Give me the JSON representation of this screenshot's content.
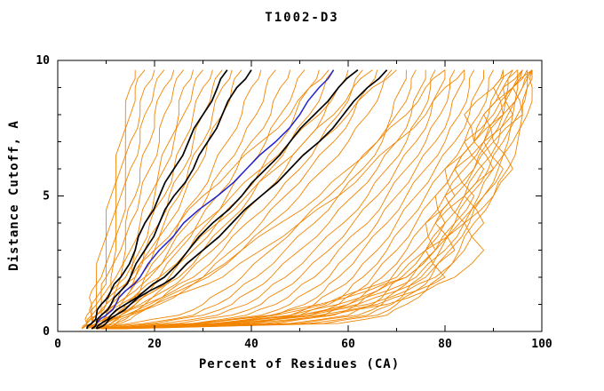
{
  "chart": {
    "title": "T1002-D3",
    "xlabel": "Percent of Residues (CA)",
    "ylabel": "Distance Cutoff, A"
  },
  "chart_data": {
    "type": "line",
    "title": "T1002-D3",
    "xlabel": "Percent of Residues (CA)",
    "ylabel": "Distance Cutoff, A",
    "xlim": [
      0,
      100
    ],
    "ylim": [
      0,
      10
    ],
    "grid": false,
    "legend": "none",
    "x_ticks": {
      "values": [
        0,
        20,
        40,
        60,
        80,
        100
      ],
      "labels": [
        "0",
        "20",
        "40",
        "60",
        "80",
        "100"
      ],
      "minor": [
        10,
        30,
        50,
        70,
        90
      ]
    },
    "y_ticks": {
      "values": [
        0,
        5,
        10
      ],
      "labels": [
        "0",
        "5",
        "10"
      ],
      "minor": [
        1,
        2,
        3,
        4,
        6,
        7,
        8,
        9
      ]
    },
    "colors": {
      "orange": "#f28500",
      "black": "#000000",
      "blue": "#2222cc"
    },
    "series_y_grid": [
      0.1,
      0.3,
      0.6,
      1,
      1.5,
      2,
      3,
      4,
      5,
      6,
      7,
      8,
      9,
      9.65
    ],
    "series": [
      {
        "c": "orange",
        "x": [
          5,
          6,
          6,
          7,
          7,
          8,
          9,
          10,
          11,
          12,
          13,
          14,
          15,
          16
        ]
      },
      {
        "c": "orange",
        "x": [
          5,
          6,
          7,
          7,
          8,
          9,
          10,
          11,
          12,
          13,
          14,
          15,
          16,
          18
        ]
      },
      {
        "c": "orange",
        "x": [
          6,
          6,
          7,
          8,
          9,
          10,
          11,
          12,
          13,
          14,
          15,
          17,
          18,
          20
        ]
      },
      {
        "c": "orange",
        "x": [
          6,
          7,
          7,
          8,
          9,
          10,
          12,
          13,
          14,
          15,
          17,
          18,
          20,
          22
        ]
      },
      {
        "c": "orange",
        "x": [
          6,
          7,
          8,
          9,
          10,
          11,
          13,
          14,
          16,
          17,
          19,
          20,
          22,
          24
        ]
      },
      {
        "c": "orange",
        "x": [
          6,
          7,
          8,
          9,
          11,
          12,
          14,
          15,
          17,
          19,
          21,
          22,
          24,
          26
        ]
      },
      {
        "c": "orange",
        "x": [
          7,
          7,
          8,
          10,
          11,
          13,
          15,
          17,
          19,
          21,
          23,
          25,
          26,
          28
        ]
      },
      {
        "c": "orange",
        "x": [
          7,
          8,
          9,
          10,
          12,
          14,
          16,
          18,
          20,
          22,
          24,
          26,
          28,
          30
        ]
      },
      {
        "c": "orange",
        "x": [
          7,
          8,
          9,
          11,
          13,
          15,
          17,
          19,
          22,
          24,
          26,
          28,
          30,
          32
        ]
      },
      {
        "c": "orange",
        "x": [
          7,
          8,
          10,
          11,
          13,
          16,
          18,
          21,
          23,
          26,
          28,
          30,
          32,
          34
        ]
      },
      {
        "c": "orange",
        "x": [
          7,
          8,
          10,
          12,
          14,
          16,
          19,
          22,
          25,
          27,
          30,
          32,
          34,
          36
        ]
      },
      {
        "c": "orange",
        "x": [
          8,
          9,
          10,
          12,
          15,
          17,
          20,
          23,
          26,
          29,
          31,
          34,
          36,
          38
        ]
      },
      {
        "c": "orange",
        "x": [
          8,
          9,
          11,
          13,
          16,
          18,
          22,
          25,
          29,
          32,
          35,
          38,
          40,
          42
        ]
      },
      {
        "c": "orange",
        "x": [
          8,
          9,
          11,
          14,
          17,
          19,
          23,
          27,
          31,
          34,
          38,
          41,
          43,
          45
        ]
      },
      {
        "c": "orange",
        "x": [
          8,
          10,
          12,
          14,
          18,
          21,
          25,
          29,
          33,
          37,
          40,
          44,
          46,
          48
        ]
      },
      {
        "c": "orange",
        "x": [
          8,
          10,
          12,
          15,
          19,
          22,
          27,
          31,
          35,
          39,
          43,
          46,
          49,
          51
        ]
      },
      {
        "c": "orange",
        "x": [
          9,
          10,
          13,
          16,
          20,
          23,
          28,
          33,
          38,
          42,
          46,
          49,
          52,
          54
        ]
      },
      {
        "c": "orange",
        "x": [
          9,
          11,
          13,
          17,
          21,
          25,
          30,
          35,
          40,
          44,
          48,
          52,
          55,
          57
        ]
      },
      {
        "c": "orange",
        "x": [
          9,
          11,
          14,
          18,
          22,
          26,
          32,
          37,
          42,
          47,
          51,
          55,
          58,
          60
        ]
      },
      {
        "c": "orange",
        "x": [
          9,
          12,
          15,
          19,
          23,
          28,
          34,
          39,
          45,
          50,
          54,
          58,
          61,
          63
        ]
      },
      {
        "c": "orange",
        "x": [
          10,
          12,
          15,
          20,
          25,
          30,
          36,
          42,
          47,
          52,
          57,
          61,
          64,
          66
        ]
      },
      {
        "c": "orange",
        "x": [
          10,
          13,
          16,
          21,
          26,
          31,
          38,
          44,
          50,
          55,
          60,
          64,
          67,
          69
        ]
      },
      {
        "c": "orange",
        "x": [
          7,
          15,
          25,
          30,
          34,
          38,
          44,
          50,
          56,
          61,
          66,
          69,
          71,
          72
        ]
      },
      {
        "c": "orange",
        "x": [
          7,
          18,
          28,
          33,
          37,
          41,
          47,
          53,
          58,
          63,
          67,
          70,
          73,
          74
        ]
      },
      {
        "c": "orange",
        "x": [
          8,
          20,
          30,
          36,
          40,
          44,
          50,
          56,
          61,
          66,
          70,
          73,
          75,
          76
        ]
      },
      {
        "c": "orange",
        "x": [
          8,
          22,
          33,
          39,
          43,
          47,
          53,
          59,
          64,
          68,
          72,
          75,
          77,
          78
        ]
      },
      {
        "c": "orange",
        "x": [
          8,
          25,
          36,
          42,
          46,
          50,
          56,
          61,
          66,
          70,
          74,
          77,
          79,
          80
        ]
      },
      {
        "c": "orange",
        "x": [
          9,
          28,
          39,
          45,
          49,
          53,
          58,
          64,
          68,
          72,
          76,
          79,
          81,
          82
        ]
      },
      {
        "c": "orange",
        "x": [
          9,
          30,
          42,
          48,
          52,
          56,
          61,
          66,
          70,
          74,
          78,
          81,
          83,
          84
        ]
      },
      {
        "c": "orange",
        "x": [
          9,
          33,
          45,
          51,
          55,
          58,
          63,
          68,
          72,
          76,
          80,
          83,
          85,
          86
        ]
      },
      {
        "c": "orange",
        "x": [
          10,
          36,
          48,
          53,
          57,
          61,
          66,
          70,
          74,
          78,
          82,
          85,
          87,
          88
        ]
      },
      {
        "c": "orange",
        "x": [
          10,
          38,
          50,
          56,
          60,
          63,
          68,
          72,
          76,
          80,
          84,
          87,
          89,
          90
        ]
      },
      {
        "c": "orange",
        "x": [
          10,
          40,
          52,
          58,
          62,
          65,
          70,
          74,
          78,
          82,
          86,
          89,
          91,
          92
        ]
      },
      {
        "c": "orange",
        "x": [
          11,
          43,
          55,
          60,
          64,
          67,
          72,
          76,
          80,
          84,
          88,
          91,
          93,
          94
        ]
      },
      {
        "c": "orange",
        "x": [
          11,
          45,
          57,
          62,
          66,
          69,
          74,
          78,
          82,
          86,
          89,
          92,
          94,
          95
        ]
      },
      {
        "c": "orange",
        "x": [
          11,
          48,
          60,
          65,
          68,
          71,
          76,
          80,
          84,
          87,
          91,
          93,
          95,
          96
        ]
      },
      {
        "c": "orange",
        "x": [
          12,
          50,
          62,
          67,
          70,
          73,
          78,
          82,
          85,
          89,
          92,
          94,
          96,
          97
        ]
      },
      {
        "c": "orange",
        "x": [
          12,
          52,
          64,
          69,
          72,
          75,
          79,
          83,
          87,
          90,
          93,
          95,
          97,
          98
        ]
      },
      {
        "c": "orange",
        "x": [
          13,
          55,
          66,
          70,
          74,
          77,
          81,
          85,
          88,
          91,
          94,
          96,
          97,
          98
        ]
      },
      {
        "c": "orange",
        "x": [
          14,
          58,
          68,
          72,
          76,
          79,
          83,
          86,
          90,
          93,
          95,
          97,
          98,
          98
        ]
      },
      {
        "c": "orange",
        "x": [
          10,
          30,
          45,
          55,
          62,
          70,
          76,
          80,
          78,
          82,
          86,
          84,
          90,
          92
        ]
      },
      {
        "c": "orange",
        "x": [
          11,
          32,
          48,
          58,
          66,
          72,
          78,
          76,
          82,
          80,
          86,
          88,
          92,
          95
        ]
      },
      {
        "c": "orange",
        "x": [
          12,
          35,
          50,
          60,
          68,
          74,
          80,
          84,
          80,
          86,
          90,
          88,
          94,
          96
        ]
      },
      {
        "c": "orange",
        "x": [
          10,
          28,
          44,
          54,
          64,
          72,
          78,
          82,
          86,
          82,
          88,
          92,
          90,
          94
        ]
      },
      {
        "c": "orange",
        "x": [
          11,
          34,
          50,
          62,
          70,
          76,
          82,
          78,
          84,
          88,
          84,
          90,
          94,
          97
        ]
      },
      {
        "c": "orange",
        "x": [
          12,
          36,
          52,
          64,
          72,
          78,
          84,
          88,
          84,
          90,
          86,
          92,
          96,
          98
        ]
      },
      {
        "c": "orange",
        "x": [
          13,
          38,
          54,
          66,
          74,
          80,
          76,
          84,
          88,
          92,
          88,
          94,
          92,
          96
        ]
      },
      {
        "c": "orange",
        "x": [
          13,
          40,
          56,
          68,
          76,
          82,
          88,
          84,
          90,
          94,
          90,
          96,
          94,
          98
        ]
      },
      {
        "c": "orange",
        "x": [
          6,
          8,
          12,
          16,
          20,
          24,
          30,
          36,
          42,
          48,
          54,
          60,
          65,
          70
        ]
      },
      {
        "c": "orange",
        "x": [
          6,
          9,
          13,
          18,
          24,
          30,
          38,
          46,
          54,
          60,
          66,
          72,
          76,
          80
        ]
      },
      {
        "c": "orange",
        "x": [
          7,
          10,
          14,
          20,
          27,
          34,
          42,
          50,
          58,
          64,
          70,
          76,
          80,
          84
        ]
      },
      {
        "c": "orange",
        "x": [
          5,
          7,
          9,
          12,
          15,
          18,
          24,
          30,
          36,
          42,
          48,
          54,
          58,
          62
        ]
      },
      {
        "c": "orange",
        "x": [
          5,
          6,
          8,
          10,
          12,
          15,
          20,
          25,
          30,
          36,
          42,
          48,
          52,
          56
        ]
      },
      {
        "c": "orange",
        "x": [
          6,
          8,
          10,
          13,
          17,
          21,
          27,
          33,
          39,
          45,
          51,
          57,
          61,
          65
        ]
      },
      {
        "c": "blue",
        "x": [
          7,
          8,
          10,
          12,
          14,
          17,
          21,
          26,
          33,
          39,
          45,
          50,
          54,
          57
        ]
      },
      {
        "c": "black",
        "x": [
          6,
          7,
          8,
          9,
          11,
          13,
          16,
          18,
          21,
          24,
          27,
          30,
          33,
          35
        ]
      },
      {
        "c": "black",
        "x": [
          7,
          8,
          9,
          11,
          13,
          15,
          18,
          21,
          24,
          28,
          31,
          34,
          37,
          40
        ]
      },
      {
        "c": "black",
        "x": [
          8,
          9,
          11,
          14,
          18,
          22,
          27,
          32,
          38,
          43,
          48,
          53,
          58,
          62
        ]
      },
      {
        "c": "black",
        "x": [
          8,
          10,
          12,
          15,
          19,
          24,
          30,
          36,
          42,
          48,
          54,
          59,
          64,
          68
        ]
      }
    ]
  }
}
